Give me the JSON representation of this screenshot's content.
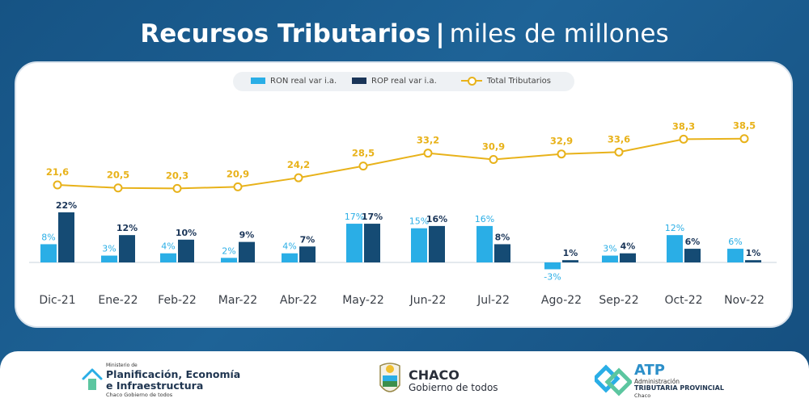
{
  "header": {
    "title_bold": "Recursos Tributarios",
    "separator": "|",
    "title_light": "miles de millones"
  },
  "legend": {
    "ron": "RON real var i.a.",
    "rop": "ROP real var i.a.",
    "total": "Total Tributarios"
  },
  "colors": {
    "ron": "#2aaee6",
    "rop": "#154b74",
    "total": "#e8b21a",
    "background": "#1b5a8c"
  },
  "chart_data": {
    "type": "bar",
    "categories": [
      "Dic-21",
      "Ene-22",
      "Feb-22",
      "Mar-22",
      "Abr-22",
      "May-22",
      "Jun-22",
      "Jul-22",
      "Ago-22",
      "Sep-22",
      "Oct-22",
      "Nov-22"
    ],
    "series": [
      {
        "name": "RON real var i.a.",
        "type": "bar",
        "values": [
          8,
          3,
          4,
          2,
          4,
          17,
          15,
          16,
          -3,
          3,
          12,
          6
        ],
        "labels": [
          "8%",
          "3%",
          "4%",
          "2%",
          "4%",
          "17%",
          "15%",
          "16%",
          "-3%",
          "3%",
          "12%",
          "6%"
        ]
      },
      {
        "name": "ROP real var i.a.",
        "type": "bar",
        "values": [
          22,
          12,
          10,
          9,
          7,
          17,
          16,
          8,
          1,
          4,
          6,
          1
        ],
        "labels": [
          "22%",
          "12%",
          "10%",
          "9%",
          "7%",
          "17%",
          "16%",
          "8%",
          "1%",
          "4%",
          "6%",
          "1%"
        ]
      },
      {
        "name": "Total Tributarios",
        "type": "line",
        "values": [
          21.6,
          20.5,
          20.3,
          20.9,
          24.2,
          28.5,
          33.2,
          30.9,
          32.9,
          33.6,
          38.3,
          38.5
        ],
        "labels": [
          "21,6",
          "20,5",
          "20,3",
          "20,9",
          "24,2",
          "28,5",
          "33,2",
          "30,9",
          "32,9",
          "33,6",
          "38,3",
          "38,5"
        ]
      }
    ],
    "title": "Recursos Tributarios | miles de millones",
    "xlabel": "",
    "ylabel": "",
    "legend_position": "top-center",
    "grid": false
  },
  "footer": {
    "ministry": {
      "pre": "Ministerio de",
      "name_line1": "Planificación, Economía",
      "name_line2": "e Infraestructura",
      "sub": "Chaco Gobierno de todos"
    },
    "chaco": {
      "name": "CHACO",
      "sub": "Gobierno de todos"
    },
    "atp": {
      "name": "ATP",
      "sub1": "Administración",
      "sub2": "TRIBUTARIA PROVINCIAL",
      "sub3": "Chaco"
    }
  }
}
